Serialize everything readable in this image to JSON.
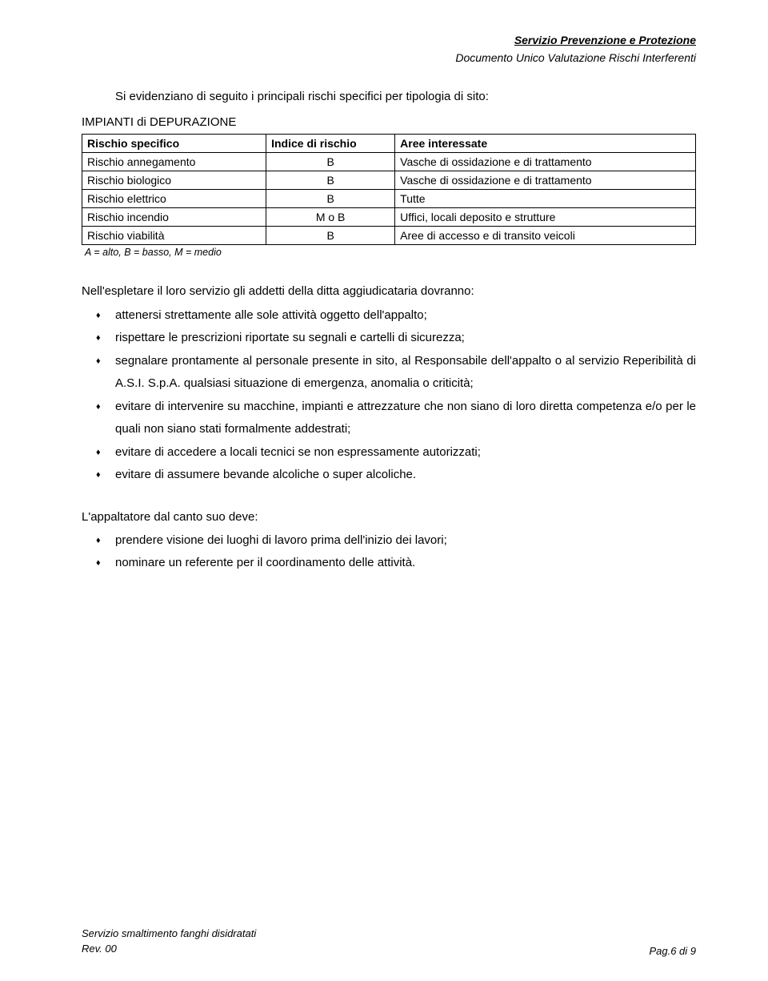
{
  "header": {
    "line1": "Servizio Prevenzione e Protezione",
    "line2": "Documento Unico Valutazione Rischi Interferenti"
  },
  "intro": "Si evidenziano di seguito i principali rischi specifici per tipologia di sito:",
  "section_title": "IMPIANTI di DEPURAZIONE",
  "table": {
    "headers": [
      "Rischio specifico",
      "Indice di rischio",
      "Aree interessate"
    ],
    "rows": [
      [
        "Rischio annegamento",
        "B",
        "Vasche di ossidazione e di trattamento"
      ],
      [
        "Rischio biologico",
        "B",
        "Vasche di ossidazione e di trattamento"
      ],
      [
        "Rischio elettrico",
        "B",
        "Tutte"
      ],
      [
        "Rischio incendio",
        "M o B",
        "Uffici, locali deposito e strutture"
      ],
      [
        "Rischio viabilità",
        "B",
        "Aree di accesso e di transito veicoli"
      ]
    ]
  },
  "legend": "A = alto, B = basso, M = medio",
  "list1_intro": "Nell'espletare il loro servizio gli addetti della ditta aggiudicataria dovranno:",
  "list1": [
    "attenersi strettamente alle sole attività oggetto dell'appalto;",
    "rispettare le prescrizioni riportate su segnali e cartelli di sicurezza;",
    "segnalare prontamente al personale presente in sito, al Responsabile dell'appalto o al servizio Reperibilità di A.S.I. S.p.A. qualsiasi situazione di emergenza, anomalia o criticità;",
    "evitare di intervenire su macchine, impianti e attrezzature che non siano di loro diretta competenza e/o per le quali non siano stati formalmente addestrati;",
    "evitare di accedere a locali tecnici se non espressamente autorizzati;",
    "evitare di assumere bevande alcoliche o super alcoliche."
  ],
  "list2_intro": "L'appaltatore dal canto suo deve:",
  "list2": [
    "prendere visione dei luoghi di lavoro prima dell'inizio dei lavori;",
    "nominare un referente per il coordinamento delle attività."
  ],
  "footer": {
    "left_line1": "Servizio smaltimento fanghi disidratati",
    "left_line2": "Rev. 00",
    "right": "Pag.6 di 9"
  }
}
